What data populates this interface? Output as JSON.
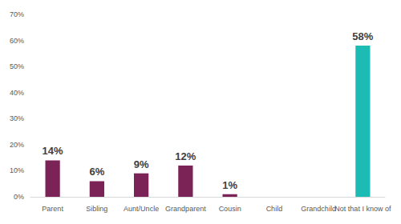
{
  "chart_data": {
    "type": "bar",
    "categories": [
      "Parent",
      "Sibling",
      "Aunt/Uncle",
      "Grandparent",
      "Cousin",
      "Child",
      "Grandchild",
      "Not that I know of"
    ],
    "values": [
      14,
      6,
      9,
      12,
      1,
      null,
      null,
      58
    ],
    "value_labels": [
      "14%",
      "6%",
      "9%",
      "12%",
      "1%",
      null,
      null,
      "58%"
    ],
    "colors": [
      "#7b2257",
      "#7b2257",
      "#7b2257",
      "#7b2257",
      "#7b2257",
      "#7b2257",
      "#7b2257",
      "#1cbcb4"
    ],
    "ylim": [
      0,
      70
    ],
    "yticks": [
      {
        "value": 0,
        "label": "0%"
      },
      {
        "value": 10,
        "label": "10%"
      },
      {
        "value": 20,
        "label": "20%"
      },
      {
        "value": 30,
        "label": "30%"
      },
      {
        "value": 40,
        "label": "40%"
      },
      {
        "value": 50,
        "label": "50%"
      },
      {
        "value": 60,
        "label": "60%"
      },
      {
        "value": 70,
        "label": "70%"
      }
    ],
    "grid": false,
    "data_labels": true
  }
}
